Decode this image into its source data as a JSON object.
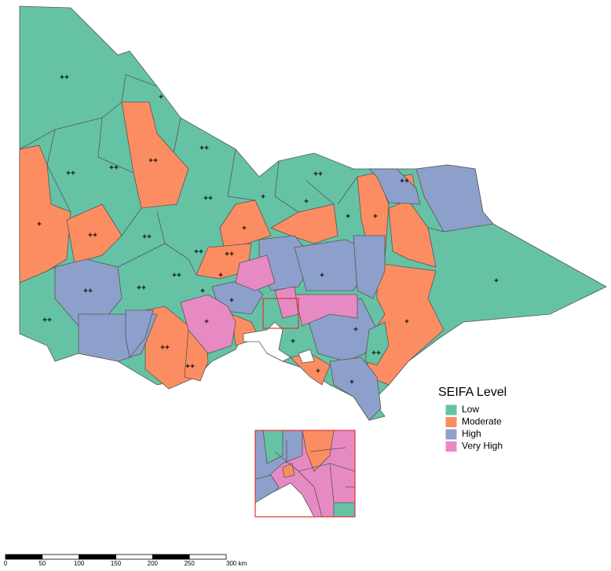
{
  "legend": {
    "title": "SEIFA Level",
    "items": [
      {
        "label": "Low",
        "color": "#66c2a5"
      },
      {
        "label": "Moderate",
        "color": "#fc8d62"
      },
      {
        "label": "High",
        "color": "#8da0cb"
      },
      {
        "label": "Very High",
        "color": "#e78ac3"
      }
    ]
  },
  "scale_bar": {
    "labels": [
      "0",
      "50",
      "100",
      "150",
      "200",
      "250",
      "300 km"
    ]
  }
}
